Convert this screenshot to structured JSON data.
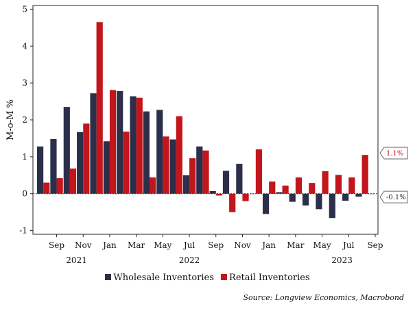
{
  "colors": {
    "wholesale": "#2b2f4a",
    "retail": "#c2161c"
  },
  "chart_data": {
    "type": "bar",
    "ylabel": "M-o-M %",
    "ylim": [
      -1.1,
      5.1
    ],
    "yticks": [
      -1,
      0,
      1,
      2,
      3,
      4,
      5
    ],
    "categories": [
      "Aug 2021",
      "Sep 2021",
      "Oct 2021",
      "Nov 2021",
      "Dec 2021",
      "Jan 2022",
      "Feb 2022",
      "Mar 2022",
      "Apr 2022",
      "May 2022",
      "Jun 2022",
      "Jul 2022",
      "Aug 2022",
      "Sep 2022",
      "Oct 2022",
      "Nov 2022",
      "Dec 2022",
      "Jan 2023",
      "Feb 2023",
      "Mar 2023",
      "Apr 2023",
      "May 2023",
      "Jun 2023",
      "Jul 2023",
      "Aug 2023",
      "Sep 2023"
    ],
    "month_labels": [
      {
        "index": 1,
        "label": "Sep"
      },
      {
        "index": 3,
        "label": "Nov"
      },
      {
        "index": 5,
        "label": "Jan"
      },
      {
        "index": 7,
        "label": "Mar"
      },
      {
        "index": 9,
        "label": "May"
      },
      {
        "index": 11,
        "label": "Jul"
      },
      {
        "index": 13,
        "label": "Sep"
      },
      {
        "index": 15,
        "label": "Nov"
      },
      {
        "index": 17,
        "label": "Jan"
      },
      {
        "index": 19,
        "label": "Mar"
      },
      {
        "index": 21,
        "label": "May"
      },
      {
        "index": 23,
        "label": "Jul"
      },
      {
        "index": 25,
        "label": "Sep"
      }
    ],
    "year_labels": [
      {
        "index": 2.5,
        "label": "2021"
      },
      {
        "index": 11,
        "label": "2022"
      },
      {
        "index": 22.5,
        "label": "2023"
      }
    ],
    "series": [
      {
        "name": "Wholesale Inventories",
        "values": [
          1.28,
          1.48,
          2.35,
          1.67,
          2.72,
          1.42,
          2.78,
          2.64,
          2.23,
          2.27,
          1.47,
          0.5,
          1.28,
          0.07,
          0.62,
          0.81,
          0.0,
          -0.55,
          0.04,
          -0.22,
          -0.32,
          -0.42,
          -0.66,
          -0.19,
          -0.08,
          0.0
        ]
      },
      {
        "name": "Retail Inventories",
        "values": [
          0.3,
          0.42,
          0.68,
          1.9,
          4.65,
          2.81,
          1.68,
          2.6,
          0.44,
          1.55,
          2.1,
          0.96,
          1.17,
          -0.05,
          -0.5,
          -0.2,
          1.2,
          0.33,
          0.22,
          0.44,
          0.29,
          0.61,
          0.51,
          0.44,
          1.05,
          null
        ]
      }
    ],
    "callouts": [
      {
        "value": 1.1,
        "label": "1.1%",
        "series": "Retail Inventories"
      },
      {
        "value": -0.1,
        "label": "-0.1%",
        "series": "Wholesale Inventories"
      }
    ],
    "legend": {
      "position": "bottom-center"
    },
    "source": "Source: Longview Economics, Macrobond"
  }
}
